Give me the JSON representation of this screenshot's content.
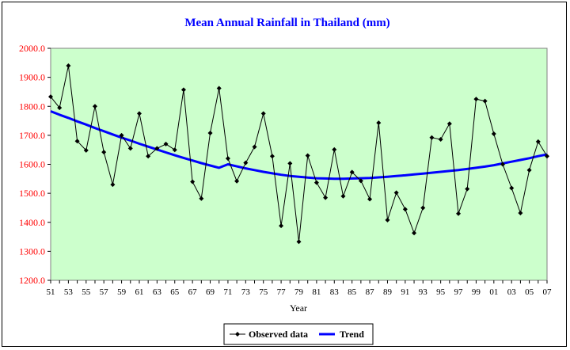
{
  "chart_data": {
    "type": "line",
    "title": "Mean Annual Rainfall in Thailand (mm)",
    "xlabel": "Year",
    "ylabel": "",
    "ylim": [
      1200,
      2000
    ],
    "yticks": [
      "1200.0",
      "1300.0",
      "1400.0",
      "1500.0",
      "1600.0",
      "1700.0",
      "1800.0",
      "1900.0",
      "2000.0"
    ],
    "xticks": [
      "51",
      "53",
      "55",
      "57",
      "59",
      "61",
      "63",
      "65",
      "67",
      "69",
      "71",
      "73",
      "75",
      "77",
      "79",
      "81",
      "83",
      "85",
      "87",
      "89",
      "91",
      "93",
      "95",
      "97",
      "99",
      "01",
      "03",
      "05",
      "07"
    ],
    "x": [
      1951,
      1952,
      1953,
      1954,
      1955,
      1956,
      1957,
      1958,
      1959,
      1960,
      1961,
      1962,
      1963,
      1964,
      1965,
      1966,
      1967,
      1968,
      1969,
      1970,
      1971,
      1972,
      1973,
      1974,
      1975,
      1976,
      1977,
      1978,
      1979,
      1980,
      1981,
      1982,
      1983,
      1984,
      1985,
      1986,
      1987,
      1988,
      1989,
      1990,
      1991,
      1992,
      1993,
      1994,
      1995,
      1996,
      1997,
      1998,
      1999,
      2000,
      2001,
      2002,
      2003,
      2004,
      2005,
      2006,
      2007
    ],
    "grid": false,
    "legend_position": "bottom",
    "plot_background": "#ccffcc",
    "series": [
      {
        "name": "Observed data",
        "color": "#000000",
        "marker": "diamond",
        "values": [
          1833,
          1795,
          1940,
          1680,
          1648,
          1800,
          1642,
          1530,
          1700,
          1655,
          1775,
          1628,
          1655,
          1670,
          1650,
          1857,
          1540,
          1482,
          1708,
          1862,
          1620,
          1542,
          1605,
          1660,
          1775,
          1628,
          1388,
          1603,
          1333,
          1630,
          1537,
          1485,
          1651,
          1490,
          1573,
          1543,
          1480,
          1743,
          1408,
          1502,
          1445,
          1363,
          1450,
          1692,
          1686,
          1740,
          1430,
          1515,
          1825,
          1818,
          1705,
          1600,
          1518,
          1432,
          1580,
          1678,
          1628
        ]
      },
      {
        "name": "Trend",
        "color": "#0000ff",
        "marker": "none",
        "values": [
          1783,
          1771,
          1760,
          1748,
          1737,
          1725,
          1714,
          1703,
          1692,
          1682,
          1671,
          1661,
          1651,
          1641,
          1631,
          1622,
          1613,
          1604,
          1596,
          1588,
          1600,
          1593,
          1586,
          1580,
          1574,
          1569,
          1564,
          1560,
          1557,
          1554,
          1552,
          1551,
          1550,
          1550,
          1551,
          1552,
          1553,
          1555,
          1557,
          1560,
          1562,
          1565,
          1568,
          1571,
          1574,
          1577,
          1580,
          1584,
          1588,
          1592,
          1597,
          1603,
          1609,
          1615,
          1621,
          1628,
          1634
        ]
      }
    ]
  }
}
